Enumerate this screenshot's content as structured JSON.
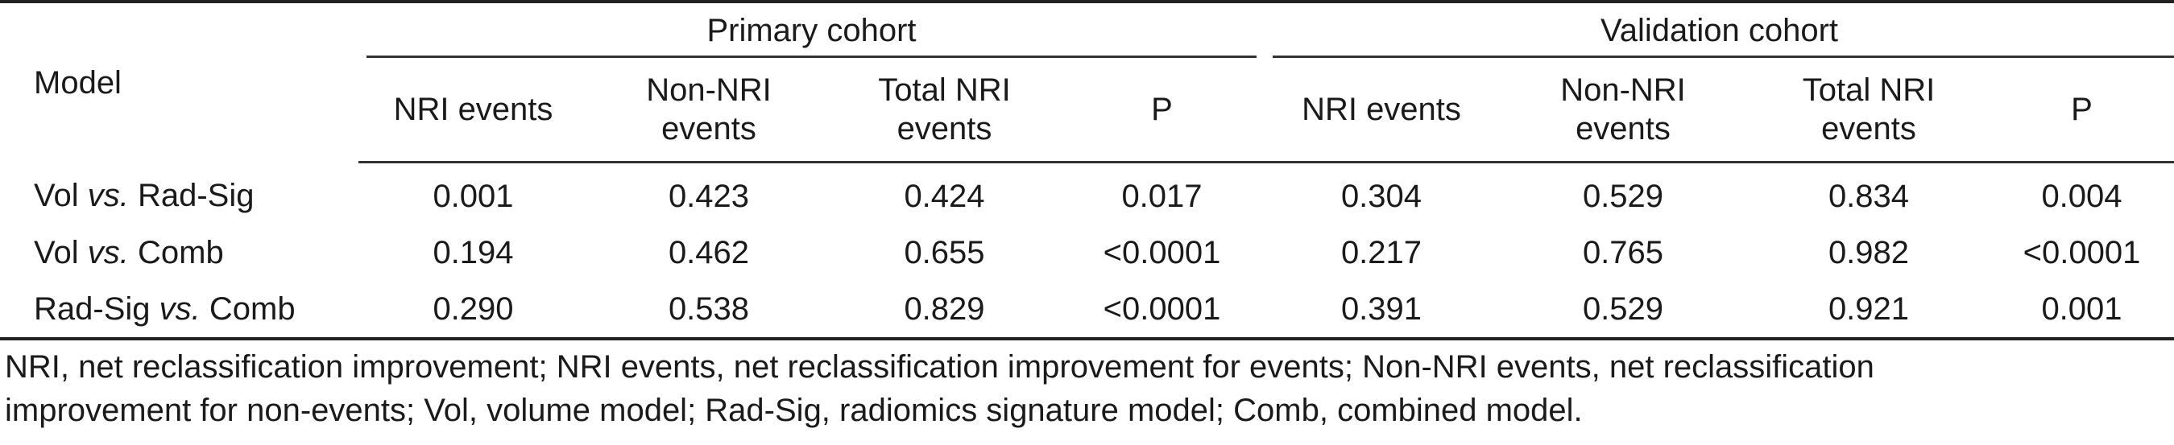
{
  "table": {
    "model_header": "Model",
    "groups": {
      "primary": "Primary cohort",
      "validation": "Validation cohort"
    },
    "columns": {
      "nri_events": "NRI events",
      "non_nri_line1": "Non-NRI",
      "non_nri_line2": "events",
      "total_line1": "Total NRI",
      "total_line2": "events",
      "p": "P"
    },
    "rows": [
      {
        "model_a": "Vol",
        "vs": "vs.",
        "model_b": "Rad-Sig",
        "primary": [
          "0.001",
          "0.423",
          "0.424",
          "0.017"
        ],
        "validation": [
          "0.304",
          "0.529",
          "0.834",
          "0.004"
        ]
      },
      {
        "model_a": "Vol",
        "vs": "vs.",
        "model_b": "Comb",
        "primary": [
          "0.194",
          "0.462",
          "0.655",
          "<0.0001"
        ],
        "validation": [
          "0.217",
          "0.765",
          "0.982",
          "<0.0001"
        ]
      },
      {
        "model_a": "Rad-Sig",
        "vs": "vs.",
        "model_b": "Comb",
        "primary": [
          "0.290",
          "0.538",
          "0.829",
          "<0.0001"
        ],
        "validation": [
          "0.391",
          "0.529",
          "0.921",
          "0.001"
        ]
      }
    ]
  },
  "footnote": {
    "line1": "NRI, net reclassification improvement; NRI events, net reclassification improvement for events; Non-NRI events, net reclassification",
    "line2": "improvement for non-events; Vol, volume model; Rad-Sig, radiomics signature model; Comb, combined model."
  }
}
